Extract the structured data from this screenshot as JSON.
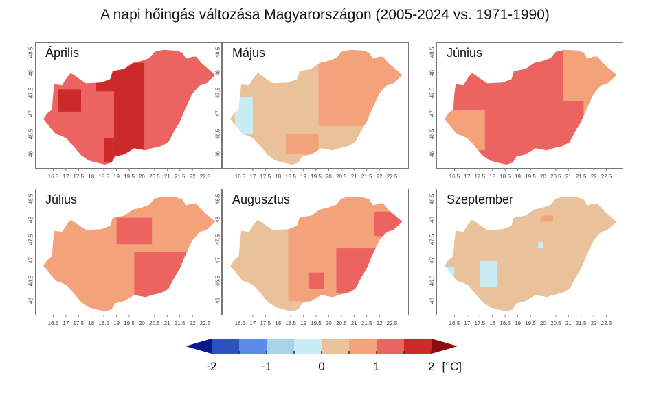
{
  "title": "A napi hőingás változása Magyarországon (2005-2024 vs. 1971-1990)",
  "axes": {
    "x_ticks": [
      "16.5",
      "17",
      "17.5",
      "18",
      "18.5",
      "19",
      "19.5",
      "20",
      "20.5",
      "21",
      "21.5",
      "22",
      "22.5"
    ],
    "y_ticks": [
      "48.5",
      "48",
      "47.5",
      "47",
      "46.5",
      "46"
    ],
    "xlim": [
      16.0,
      23.0
    ],
    "ylim": [
      45.7,
      48.7
    ]
  },
  "colors": {
    "neg_le_-2": "#0a1a8c",
    "-2_-1.5": "#2a52c4",
    "-1.5_-1": "#5b8be8",
    "-1_-0.5": "#a8d4e8",
    "-0.5_0": "#c6ecf5",
    "0_0.5": "#e9c19a",
    "0.5_1": "#f4a27a",
    "1_1.5": "#ec6462",
    "1.5_2": "#cc2a2a",
    "ge_2": "#8c0d0d"
  },
  "chart_data": [
    {
      "type": "heatmap",
      "month": "Április",
      "base_class": "1_1.5",
      "zones": [
        {
          "class": "1.5_2",
          "lon": [
            18.9,
            20.1
          ],
          "lat": [
            45.95,
            48.25
          ]
        },
        {
          "class": "1.5_2",
          "lon": [
            18.2,
            19.0
          ],
          "lat": [
            47.55,
            48.05
          ]
        },
        {
          "class": "1.5_2",
          "lon": [
            16.7,
            17.6
          ],
          "lat": [
            47.05,
            47.6
          ]
        },
        {
          "class": "1.5_2",
          "lon": [
            18.5,
            18.9
          ],
          "lat": [
            45.8,
            46.4
          ]
        }
      ]
    },
    {
      "type": "heatmap",
      "month": "Május",
      "base_class": "0_0.5",
      "zones": [
        {
          "class": "0.5_1",
          "lon": [
            19.6,
            23.0
          ],
          "lat": [
            46.7,
            48.6
          ]
        },
        {
          "class": "0.5_1",
          "lon": [
            18.3,
            19.6
          ],
          "lat": [
            46.0,
            46.5
          ]
        },
        {
          "class": "-0.5_0",
          "lon": [
            16.3,
            17.0
          ],
          "lat": [
            46.5,
            47.4
          ]
        }
      ]
    },
    {
      "type": "heatmap",
      "month": "Június",
      "base_class": "1_1.5",
      "zones": [
        {
          "class": "0.5_1",
          "lon": [
            16.1,
            17.7
          ],
          "lat": [
            46.1,
            47.1
          ]
        },
        {
          "class": "0.5_1",
          "lon": [
            20.8,
            23.0
          ],
          "lat": [
            47.3,
            48.6
          ]
        },
        {
          "class": "0.5_1",
          "lon": [
            21.6,
            22.5
          ],
          "lat": [
            46.5,
            47.3
          ]
        }
      ]
    },
    {
      "type": "heatmap",
      "month": "Július",
      "base_class": "0.5_1",
      "zones": [
        {
          "class": "1_1.5",
          "lon": [
            19.7,
            21.8
          ],
          "lat": [
            46.0,
            47.2
          ]
        },
        {
          "class": "1_1.5",
          "lon": [
            19.0,
            20.4
          ],
          "lat": [
            47.4,
            48.05
          ]
        }
      ]
    },
    {
      "type": "heatmap",
      "month": "Augusztus",
      "base_class": "0_0.5",
      "zones": [
        {
          "class": "0.5_1",
          "lon": [
            18.4,
            23.0
          ],
          "lat": [
            46.0,
            48.6
          ]
        },
        {
          "class": "1_1.5",
          "lon": [
            20.3,
            22.2
          ],
          "lat": [
            46.2,
            47.3
          ]
        },
        {
          "class": "1_1.5",
          "lon": [
            21.8,
            22.9
          ],
          "lat": [
            47.6,
            48.2
          ]
        },
        {
          "class": "1_1.5",
          "lon": [
            19.2,
            19.8
          ],
          "lat": [
            46.3,
            46.7
          ]
        }
      ]
    },
    {
      "type": "heatmap",
      "month": "Szeptember",
      "base_class": "0_0.5",
      "zones": [
        {
          "class": "-0.5_0",
          "lon": [
            17.5,
            18.2
          ],
          "lat": [
            46.35,
            47.0
          ]
        },
        {
          "class": "-0.5_0",
          "lon": [
            16.1,
            16.5
          ],
          "lat": [
            46.6,
            46.85
          ]
        },
        {
          "class": "-0.5_0",
          "lon": [
            19.8,
            20.0
          ],
          "lat": [
            47.3,
            47.45
          ]
        },
        {
          "class": "0.5_1",
          "lon": [
            19.9,
            20.4
          ],
          "lat": [
            47.95,
            48.1
          ]
        }
      ]
    }
  ],
  "legend": {
    "ticks": [
      "-2",
      "-1",
      "0",
      "1",
      "2"
    ],
    "unit": "[°C]",
    "classes": [
      "-2_-1.5",
      "-1.5_-1",
      "-1_-0.5",
      "-0.5_0",
      "0_0.5",
      "0.5_1",
      "1_1.5",
      "1.5_2"
    ],
    "low_arrow": "neg_le_-2",
    "high_arrow": "ge_2",
    "range": [
      -2.5,
      2.5
    ]
  }
}
